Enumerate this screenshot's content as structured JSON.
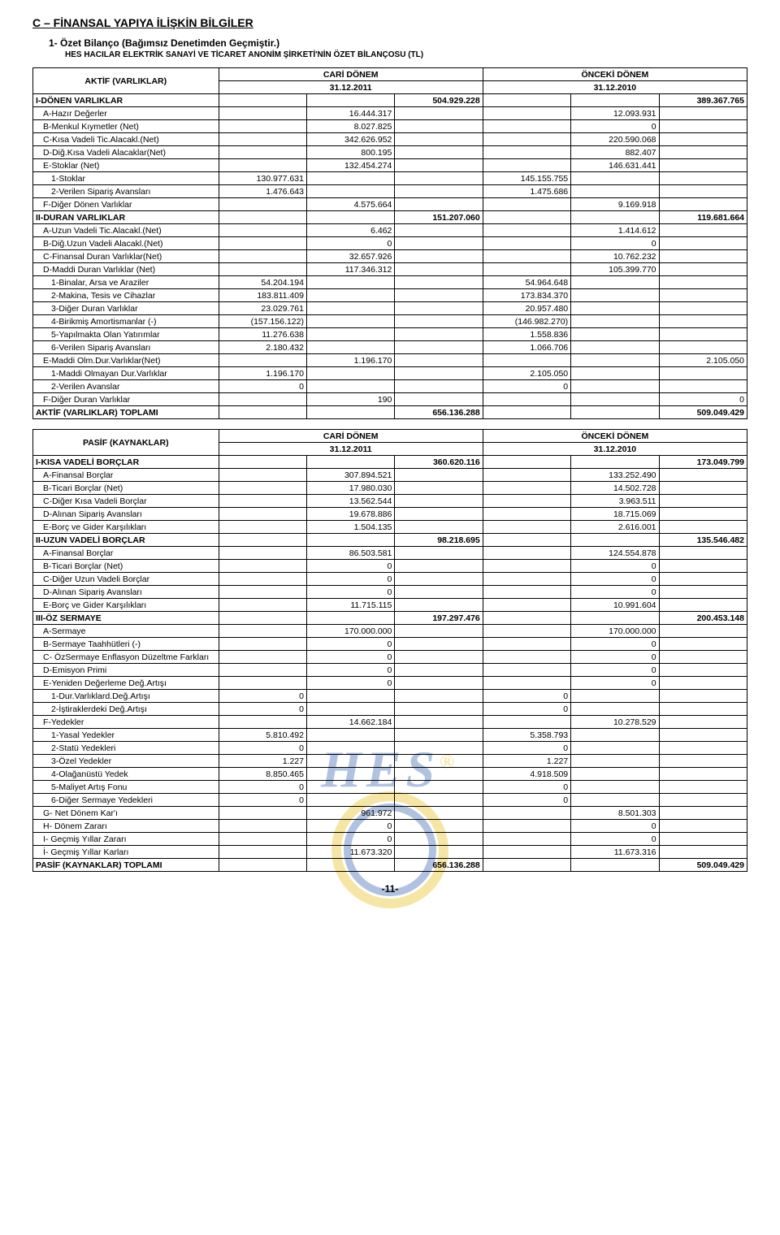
{
  "doc": {
    "section_title": "C – FİNANSAL YAPIYA İLİŞKİN BİLGİLER",
    "sub_title": "1- Özet Bilanço (Bağımsız Denetimden Geçmiştir.)",
    "sub_desc": "HES HACILAR ELEKTRİK SANAYİ VE TİCARET ANONİM ŞİRKETİ'NİN ÖZET BİLANÇOSU (TL)",
    "page_num": "-11-"
  },
  "aktif": {
    "header_label": "AKTİF (VARLIKLAR)",
    "cari_label": "CARİ DÖNEM",
    "onceki_label": "ÖNCEKİ DÖNEM",
    "cari_date": "31.12.2011",
    "onceki_date": "31.12.2010",
    "rows": [
      {
        "l": "I-DÖNEN VARLIKLAR",
        "i": 0,
        "b": 1,
        "c": [
          "",
          "",
          "504.929.228",
          "",
          "",
          "389.367.765"
        ]
      },
      {
        "l": "A-Hazır Değerler",
        "i": 1,
        "c": [
          "",
          "16.444.317",
          "",
          "",
          "12.093.931",
          ""
        ]
      },
      {
        "l": "B-Menkul Kıymetler (Net)",
        "i": 1,
        "c": [
          "",
          "8.027.825",
          "",
          "",
          "0",
          ""
        ]
      },
      {
        "l": "C-Kısa Vadeli Tic.Alacakl.(Net)",
        "i": 1,
        "c": [
          "",
          "342.626.952",
          "",
          "",
          "220.590.068",
          ""
        ]
      },
      {
        "l": "D-Diğ.Kısa Vadeli Alacaklar(Net)",
        "i": 1,
        "c": [
          "",
          "800.195",
          "",
          "",
          "882.407",
          ""
        ]
      },
      {
        "l": "E-Stoklar (Net)",
        "i": 1,
        "c": [
          "",
          "132.454.274",
          "",
          "",
          "146.631.441",
          ""
        ]
      },
      {
        "l": "1-Stoklar",
        "i": 2,
        "c": [
          "130.977.631",
          "",
          "",
          "145.155.755",
          "",
          ""
        ]
      },
      {
        "l": "2-Verilen Sipariş Avansları",
        "i": 2,
        "c": [
          "1.476.643",
          "",
          "",
          "1.475.686",
          "",
          ""
        ]
      },
      {
        "l": "F-Diğer Dönen Varlıklar",
        "i": 1,
        "c": [
          "",
          "4.575.664",
          "",
          "",
          "9.169.918",
          ""
        ]
      },
      {
        "l": "II-DURAN VARLIKLAR",
        "i": 0,
        "b": 1,
        "c": [
          "",
          "",
          "151.207.060",
          "",
          "",
          "119.681.664"
        ]
      },
      {
        "l": "A-Uzun Vadeli Tic.Alacakl.(Net)",
        "i": 1,
        "c": [
          "",
          "6.462",
          "",
          "",
          "1.414.612",
          ""
        ]
      },
      {
        "l": "B-Diğ.Uzun Vadeli Alacakl.(Net)",
        "i": 1,
        "c": [
          "",
          "0",
          "",
          "",
          "0",
          ""
        ]
      },
      {
        "l": "C-Finansal Duran Varlıklar(Net)",
        "i": 1,
        "c": [
          "",
          "32.657.926",
          "",
          "",
          "10.762.232",
          ""
        ]
      },
      {
        "l": "D-Maddi Duran Varlıklar (Net)",
        "i": 1,
        "c": [
          "",
          "117.346.312",
          "",
          "",
          "105.399.770",
          ""
        ]
      },
      {
        "l": "1-Binalar, Arsa ve Araziler",
        "i": 2,
        "c": [
          "54.204.194",
          "",
          "",
          "54.964.648",
          "",
          ""
        ]
      },
      {
        "l": "2-Makina, Tesis ve Cihazlar",
        "i": 2,
        "c": [
          "183.811.409",
          "",
          "",
          "173.834.370",
          "",
          ""
        ]
      },
      {
        "l": "3-Diğer Duran Varlıklar",
        "i": 2,
        "c": [
          "23.029.761",
          "",
          "",
          "20.957.480",
          "",
          ""
        ]
      },
      {
        "l": "4-Birikmiş Amortismanlar (-)",
        "i": 2,
        "c": [
          "(157.156.122)",
          "",
          "",
          "(146.982.270)",
          "",
          ""
        ]
      },
      {
        "l": "5-Yapılmakta Olan Yatırımlar",
        "i": 2,
        "c": [
          "11.276.638",
          "",
          "",
          "1.558.836",
          "",
          ""
        ]
      },
      {
        "l": "6-Verilen Sipariş Avansları",
        "i": 2,
        "c": [
          "2.180.432",
          "",
          "",
          "1.066.706",
          "",
          ""
        ]
      },
      {
        "l": "E-Maddi Olm.Dur.Varlıklar(Net)",
        "i": 1,
        "c": [
          "",
          "1.196.170",
          "",
          "",
          "",
          "2.105.050"
        ]
      },
      {
        "l": "1-Maddi Olmayan Dur.Varlıklar",
        "i": 2,
        "c": [
          "1.196.170",
          "",
          "",
          "2.105.050",
          "",
          ""
        ]
      },
      {
        "l": "2-Verilen Avanslar",
        "i": 2,
        "c": [
          "0",
          "",
          "",
          "0",
          "",
          ""
        ]
      },
      {
        "l": "F-Diğer Duran Varlıklar",
        "i": 1,
        "c": [
          "",
          "190",
          "",
          "",
          "",
          "0"
        ]
      },
      {
        "l": "AKTİF (VARLIKLAR) TOPLAMI",
        "i": 0,
        "b": 1,
        "c": [
          "",
          "",
          "656.136.288",
          "",
          "",
          "509.049.429"
        ]
      }
    ]
  },
  "pasif": {
    "header_label": "PASİF (KAYNAKLAR)",
    "cari_label": "CARİ DÖNEM",
    "onceki_label": "ÖNCEKİ DÖNEM",
    "cari_date": "31.12.2011",
    "onceki_date": "31.12.2010",
    "rows": [
      {
        "l": "I-KISA VADELİ BORÇLAR",
        "i": 0,
        "b": 1,
        "c": [
          "",
          "",
          "360.620.116",
          "",
          "",
          "173.049.799"
        ]
      },
      {
        "l": "A-Finansal Borçlar",
        "i": 1,
        "c": [
          "",
          "307.894.521",
          "",
          "",
          "133.252.490",
          ""
        ]
      },
      {
        "l": "B-Ticari Borçlar (Net)",
        "i": 1,
        "c": [
          "",
          "17.980.030",
          "",
          "",
          "14.502.728",
          ""
        ]
      },
      {
        "l": "C-Diğer Kısa Vadeli Borçlar",
        "i": 1,
        "c": [
          "",
          "13.562.544",
          "",
          "",
          "3.963.511",
          ""
        ]
      },
      {
        "l": "D-Alınan Sipariş Avansları",
        "i": 1,
        "c": [
          "",
          "19.678.886",
          "",
          "",
          "18.715.069",
          ""
        ]
      },
      {
        "l": "E-Borç ve Gider Karşılıkları",
        "i": 1,
        "c": [
          "",
          "1.504.135",
          "",
          "",
          "2.616.001",
          ""
        ]
      },
      {
        "l": "II-UZUN VADELİ BORÇLAR",
        "i": 0,
        "b": 1,
        "c": [
          "",
          "",
          "98.218.695",
          "",
          "",
          "135.546.482"
        ]
      },
      {
        "l": "A-Finansal Borçlar",
        "i": 1,
        "c": [
          "",
          "86.503.581",
          "",
          "",
          "124.554.878",
          ""
        ]
      },
      {
        "l": "B-Ticari Borçlar (Net)",
        "i": 1,
        "c": [
          "",
          "0",
          "",
          "",
          "0",
          ""
        ]
      },
      {
        "l": "C-Diğer Uzun Vadeli Borçlar",
        "i": 1,
        "c": [
          "",
          "0",
          "",
          "",
          "0",
          ""
        ]
      },
      {
        "l": "D-Alınan Sipariş Avansları",
        "i": 1,
        "c": [
          "",
          "0",
          "",
          "",
          "0",
          ""
        ]
      },
      {
        "l": "E-Borç ve Gider Karşılıkları",
        "i": 1,
        "c": [
          "",
          "11.715.115",
          "",
          "",
          "10.991.604",
          ""
        ]
      },
      {
        "l": "III-ÖZ SERMAYE",
        "i": 0,
        "b": 1,
        "c": [
          "",
          "",
          "197.297.476",
          "",
          "",
          "200.453.148"
        ]
      },
      {
        "l": "A-Sermaye",
        "i": 1,
        "c": [
          "",
          "170.000.000",
          "",
          "",
          "170.000.000",
          ""
        ]
      },
      {
        "l": "B-Sermaye Taahhütleri (-)",
        "i": 1,
        "c": [
          "",
          "0",
          "",
          "",
          "0",
          ""
        ]
      },
      {
        "l": "C- ÖzSermaye Enflasyon Düzeltme Farkları",
        "i": 1,
        "c": [
          "",
          "0",
          "",
          "",
          "0",
          ""
        ]
      },
      {
        "l": "D-Emisyon Primi",
        "i": 1,
        "c": [
          "",
          "0",
          "",
          "",
          "0",
          ""
        ]
      },
      {
        "l": "E-Yeniden Değerleme Değ.Artışı",
        "i": 1,
        "c": [
          "",
          "0",
          "",
          "",
          "0",
          ""
        ]
      },
      {
        "l": "1-Dur.Varlıklard.Değ.Artışı",
        "i": 2,
        "c": [
          "0",
          "",
          "",
          "0",
          "",
          ""
        ]
      },
      {
        "l": "2-İştiraklerdeki Değ.Artışı",
        "i": 2,
        "c": [
          "0",
          "",
          "",
          "0",
          "",
          ""
        ]
      },
      {
        "l": "F-Yedekler",
        "i": 1,
        "c": [
          "",
          "14.662.184",
          "",
          "",
          "10.278.529",
          ""
        ]
      },
      {
        "l": "1-Yasal Yedekler",
        "i": 2,
        "c": [
          "5.810.492",
          "",
          "",
          "5.358.793",
          "",
          ""
        ]
      },
      {
        "l": "2-Statü Yedekleri",
        "i": 2,
        "c": [
          "0",
          "",
          "",
          "0",
          "",
          ""
        ]
      },
      {
        "l": "3-Özel Yedekler",
        "i": 2,
        "c": [
          "1.227",
          "",
          "",
          "1.227",
          "",
          ""
        ]
      },
      {
        "l": "4-Olağanüstü Yedek",
        "i": 2,
        "c": [
          "8.850.465",
          "",
          "",
          "4.918.509",
          "",
          ""
        ]
      },
      {
        "l": "5-Maliyet Artış Fonu",
        "i": 2,
        "c": [
          "0",
          "",
          "",
          "0",
          "",
          ""
        ]
      },
      {
        "l": "6-Diğer Sermaye Yedekleri",
        "i": 2,
        "c": [
          "0",
          "",
          "",
          "0",
          "",
          ""
        ]
      },
      {
        "l": "G- Net Dönem Kar'ı",
        "i": 1,
        "c": [
          "",
          "961.972",
          "",
          "",
          "8.501.303",
          ""
        ]
      },
      {
        "l": "H- Dönem Zararı",
        "i": 1,
        "c": [
          "",
          "0",
          "",
          "",
          "0",
          ""
        ]
      },
      {
        "l": "I- Geçmiş Yıllar Zararı",
        "i": 1,
        "c": [
          "",
          "0",
          "",
          "",
          "0",
          ""
        ]
      },
      {
        "l": "İ- Geçmiş Yıllar Karları",
        "i": 1,
        "c": [
          "",
          "11.673.320",
          "",
          "",
          "11.673.316",
          ""
        ]
      },
      {
        "l": "PASİF (KAYNAKLAR) TOPLAMI",
        "i": 0,
        "b": 1,
        "c": [
          "",
          "",
          "656.136.288",
          "",
          "",
          "509.049.429"
        ]
      }
    ]
  }
}
